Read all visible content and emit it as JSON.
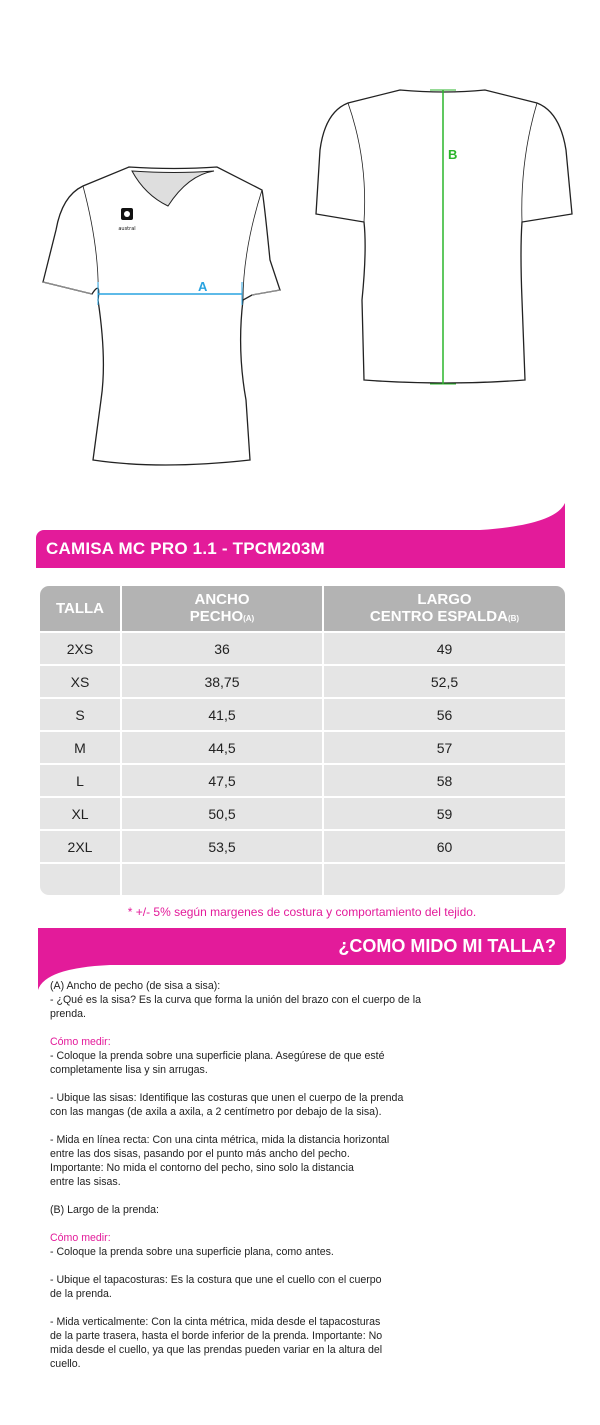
{
  "diagram": {
    "label_a": "A",
    "label_b": "B",
    "logo_text": "austral",
    "color_a": "#29a3e0",
    "color_b": "#2bb52b"
  },
  "title": "CAMISA MC PRO 1.1  -  TPCM203M",
  "table": {
    "headers": {
      "talla": "TALLA",
      "ancho_1": "ANCHO",
      "ancho_2": "PECHO",
      "ancho_sub": "(A)",
      "largo_1": "LARGO",
      "largo_2": "CENTRO ESPALDA",
      "largo_sub": "(B)"
    },
    "rows": [
      {
        "talla": "2XS",
        "ancho": "36",
        "largo": "49"
      },
      {
        "talla": "XS",
        "ancho": "38,75",
        "largo": "52,5"
      },
      {
        "talla": "S",
        "ancho": "41,5",
        "largo": "56"
      },
      {
        "talla": "M",
        "ancho": "44,5",
        "largo": "57"
      },
      {
        "talla": "L",
        "ancho": "47,5",
        "largo": "58"
      },
      {
        "talla": "XL",
        "ancho": "50,5",
        "largo": "59"
      },
      {
        "talla": "2XL",
        "ancho": "53,5",
        "largo": "60"
      }
    ]
  },
  "note": "* +/- 5% según margenes de costura y comportamiento del tejido.",
  "howto": {
    "title": "¿COMO MIDO MI TALLA?",
    "a_intro": "(A) Ancho de pecho (de sisa a sisa):\n- ¿Qué es la sisa? Es la curva que forma la unión del brazo con el cuerpo de la\nprenda.",
    "a_como": "Cómo medir:",
    "a_1": "- Coloque la prenda sobre una superficie plana. Asegúrese de que esté\ncompletamente lisa y sin arrugas.",
    "a_2": "- Ubique las sisas: Identifique las costuras que unen el cuerpo de la prenda\ncon las mangas (de axila a axila, a 2 centímetro por debajo de la sisa).",
    "a_3": "- Mida en línea recta: Con una cinta métrica, mida la distancia horizontal\nentre las dos sisas, pasando por el punto más ancho del pecho.\nImportante: No mida el contorno del pecho, sino solo la distancia\nentre las sisas.",
    "b_intro": "(B) Largo de la prenda:",
    "b_como": "Cómo medir:",
    "b_1": "- Coloque la prenda sobre una superficie plana, como antes.",
    "b_2": "- Ubique el tapacosturas: Es la costura que une el cuello con el cuerpo\nde la prenda.",
    "b_3": "- Mida verticalmente: Con la cinta métrica, mida desde el tapacosturas\nde la parte trasera, hasta el borde inferior de la prenda. Importante: No\nmida desde el cuello, ya que las prendas pueden variar en la altura del\ncuello."
  }
}
